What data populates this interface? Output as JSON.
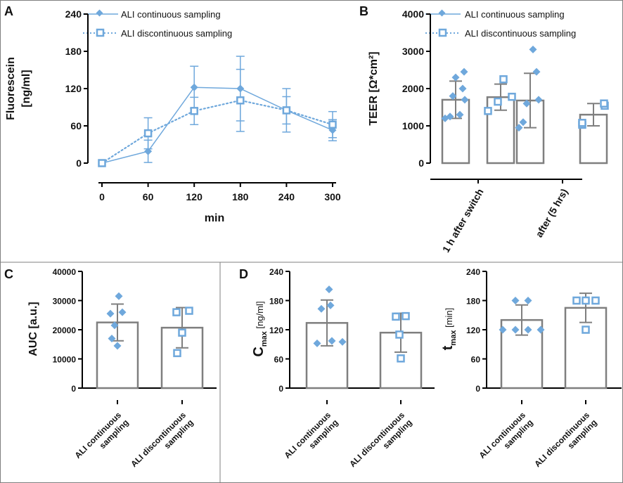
{
  "colors": {
    "series": "#6fa8dc",
    "bar": "#7f7f7f",
    "axis": "#000000",
    "frame": "#7f7f7f"
  },
  "panels": {
    "A": "A",
    "B": "B",
    "C": "C",
    "D": "D"
  },
  "chart_data": [
    {
      "id": "A",
      "type": "line",
      "xlabel": "min",
      "ylabel_line1": "Fluorescein",
      "ylabel_line2": "[ng/ml]",
      "ylim": [
        0,
        240
      ],
      "yticks": [
        "0",
        "60",
        "120",
        "180",
        "240"
      ],
      "xticks": [
        "0",
        "60",
        "120",
        "180",
        "240",
        "300"
      ],
      "legend": [
        "ALI continuous sampling",
        "ALI discontinuous sampling"
      ],
      "series": [
        {
          "name": "ALI continuous sampling",
          "marker": "diamond",
          "line": "solid",
          "x": [
            0,
            60,
            120,
            180,
            240,
            300
          ],
          "y": [
            0,
            19,
            122,
            120,
            85,
            53
          ],
          "err": [
            0,
            18,
            34,
            52,
            35,
            17
          ]
        },
        {
          "name": "ALI discontinuous sampling",
          "marker": "square",
          "line": "dotted",
          "x": [
            0,
            60,
            120,
            180,
            240,
            300
          ],
          "y": [
            0,
            48,
            84,
            101,
            85,
            62
          ],
          "err": [
            0,
            25,
            22,
            50,
            22,
            21
          ]
        }
      ]
    },
    {
      "id": "B",
      "type": "bar",
      "ylabel": "TEER [Ω*cm²]",
      "ylim": [
        0,
        4000
      ],
      "yticks": [
        "0",
        "1000",
        "2000",
        "3000",
        "4000"
      ],
      "categories": [
        "1 h after switch",
        "after (5 hrs)"
      ],
      "legend": [
        "ALI continuous sampling",
        "ALI discontinuous sampling"
      ],
      "bars": [
        {
          "group": "1 h after switch",
          "series": "ALI continuous sampling",
          "mean": 1700,
          "sd": 500,
          "points": [
            1200,
            1250,
            1300,
            1700,
            1800,
            2000,
            2300,
            2450
          ]
        },
        {
          "group": "1 h after switch",
          "series": "ALI discontinuous sampling",
          "mean": 1770,
          "sd": 350,
          "points": [
            1400,
            1650,
            1780,
            2250
          ]
        },
        {
          "group": "after (5 hrs)",
          "series": "ALI continuous sampling",
          "mean": 1680,
          "sd": 730,
          "points": [
            950,
            1100,
            1600,
            1700,
            2450,
            3050
          ]
        },
        {
          "group": "after (5 hrs)",
          "series": "ALI discontinuous sampling",
          "mean": 1300,
          "sd": 300,
          "points": [
            1030,
            1080,
            1540,
            1600
          ]
        }
      ]
    },
    {
      "id": "C",
      "type": "bar",
      "ylabel": "AUC [a.u.]",
      "ylim": [
        0,
        40000
      ],
      "yticks": [
        "0",
        "10000",
        "20000",
        "30000",
        "40000"
      ],
      "categories": [
        [
          "ALI continuous",
          "sampling"
        ],
        [
          "ALI discontinuous",
          "sampling"
        ]
      ],
      "bars": [
        {
          "mean": 22500,
          "sd": 6300,
          "marker": "diamond",
          "points": [
            14500,
            17000,
            21500,
            25500,
            26000,
            31500
          ]
        },
        {
          "mean": 20700,
          "sd": 6900,
          "marker": "square",
          "points": [
            12000,
            19000,
            26000,
            26500
          ]
        }
      ]
    },
    {
      "id": "D1",
      "type": "bar",
      "ylabel_main": "C",
      "ylabel_sub": "max",
      "ylabel_rest": " [ng/ml]",
      "ylim": [
        0,
        240
      ],
      "yticks": [
        "0",
        "60",
        "120",
        "180",
        "240"
      ],
      "categories": [
        [
          "ALI continuous",
          "sampling"
        ],
        [
          "ALI discontinuous",
          "sampling"
        ]
      ],
      "bars": [
        {
          "mean": 134,
          "sd": 47,
          "marker": "diamond",
          "points": [
            92,
            95,
            97,
            163,
            170,
            203
          ]
        },
        {
          "mean": 114,
          "sd": 40,
          "marker": "square",
          "points": [
            61,
            110,
            147,
            148
          ]
        }
      ]
    },
    {
      "id": "D2",
      "type": "bar",
      "ylabel_main": "t",
      "ylabel_sub": "max",
      "ylabel_rest": " [min]",
      "ylim": [
        0,
        240
      ],
      "yticks": [
        "0",
        "60",
        "120",
        "180",
        "240"
      ],
      "categories": [
        [
          "ALI continuous",
          "sampling"
        ],
        [
          "ALI discontinuous",
          "sampling"
        ]
      ],
      "bars": [
        {
          "mean": 140,
          "sd": 31,
          "marker": "diamond",
          "points": [
            120,
            120,
            120,
            120,
            180,
            180
          ]
        },
        {
          "mean": 165,
          "sd": 30,
          "marker": "square",
          "points": [
            120,
            180,
            180,
            180
          ]
        }
      ]
    }
  ]
}
